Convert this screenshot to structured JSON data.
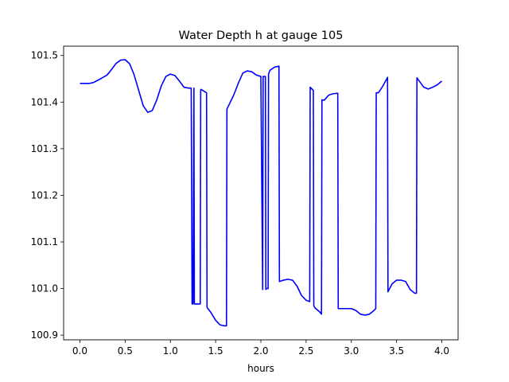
{
  "chart_data": {
    "type": "line",
    "title": "Water Depth h at gauge 105",
    "xlabel": "hours",
    "ylabel": "",
    "xlim": [
      -0.18,
      4.18
    ],
    "ylim": [
      100.89,
      101.52
    ],
    "x_ticks": [
      0.0,
      0.5,
      1.0,
      1.5,
      2.0,
      2.5,
      3.0,
      3.5,
      4.0
    ],
    "x_tick_labels": [
      "0.0",
      "0.5",
      "1.0",
      "1.5",
      "2.0",
      "2.5",
      "3.0",
      "3.5",
      "4.0"
    ],
    "y_ticks": [
      100.9,
      101.0,
      101.1,
      101.2,
      101.3,
      101.4,
      101.5
    ],
    "y_tick_labels": [
      "100.9",
      "101.0",
      "101.1",
      "101.2",
      "101.3",
      "101.4",
      "101.5"
    ],
    "grid": false,
    "series": [
      {
        "color": "#0000ff",
        "x": [
          0.0,
          0.1,
          0.15,
          0.2,
          0.3,
          0.35,
          0.4,
          0.45,
          0.5,
          0.55,
          0.6,
          0.65,
          0.7,
          0.75,
          0.8,
          0.85,
          0.9,
          0.95,
          1.0,
          1.05,
          1.1,
          1.15,
          1.2,
          1.23,
          1.24,
          1.25,
          1.26,
          1.265,
          1.27,
          1.33,
          1.335,
          1.34,
          1.4,
          1.405,
          1.41,
          1.45,
          1.5,
          1.55,
          1.6,
          1.62,
          1.625,
          1.65,
          1.7,
          1.75,
          1.8,
          1.85,
          1.9,
          1.95,
          2.0,
          2.02,
          2.025,
          2.05,
          2.055,
          2.06,
          2.08,
          2.085,
          2.1,
          2.15,
          2.2,
          2.205,
          2.25,
          2.3,
          2.35,
          2.4,
          2.45,
          2.5,
          2.54,
          2.545,
          2.58,
          2.585,
          2.6,
          2.65,
          2.67,
          2.675,
          2.7,
          2.75,
          2.8,
          2.85,
          2.855,
          2.9,
          2.95,
          3.0,
          3.05,
          3.1,
          3.15,
          3.2,
          3.25,
          3.27,
          3.275,
          3.3,
          3.35,
          3.4,
          3.405,
          3.45,
          3.5,
          3.55,
          3.6,
          3.65,
          3.7,
          3.72,
          3.725,
          3.8,
          3.85,
          3.9,
          3.95,
          4.0
        ],
        "y": [
          101.44,
          101.44,
          101.442,
          101.447,
          101.458,
          101.47,
          101.483,
          101.49,
          101.491,
          101.482,
          101.458,
          101.425,
          101.392,
          101.378,
          101.382,
          101.405,
          101.435,
          101.455,
          101.46,
          101.457,
          101.445,
          101.432,
          101.43,
          101.43,
          100.967,
          100.967,
          101.43,
          100.967,
          100.967,
          100.967,
          101.427,
          101.427,
          101.42,
          100.96,
          100.958,
          100.948,
          100.932,
          100.922,
          100.92,
          100.92,
          101.385,
          101.395,
          101.415,
          101.44,
          101.462,
          101.467,
          101.465,
          101.458,
          101.455,
          100.998,
          101.455,
          101.455,
          100.998,
          101.0,
          101.0,
          101.46,
          101.468,
          101.475,
          101.477,
          101.015,
          101.018,
          101.02,
          101.018,
          101.005,
          100.985,
          100.975,
          100.972,
          101.432,
          101.425,
          100.963,
          100.958,
          100.95,
          100.945,
          101.405,
          101.404,
          101.415,
          101.418,
          101.419,
          100.957,
          100.957,
          100.957,
          100.957,
          100.953,
          100.945,
          100.943,
          100.945,
          100.953,
          100.957,
          101.42,
          101.42,
          101.435,
          101.453,
          100.993,
          101.01,
          101.018,
          101.018,
          101.015,
          100.998,
          100.99,
          100.99,
          101.452,
          101.432,
          101.428,
          101.432,
          101.437,
          101.445
        ]
      }
    ]
  }
}
